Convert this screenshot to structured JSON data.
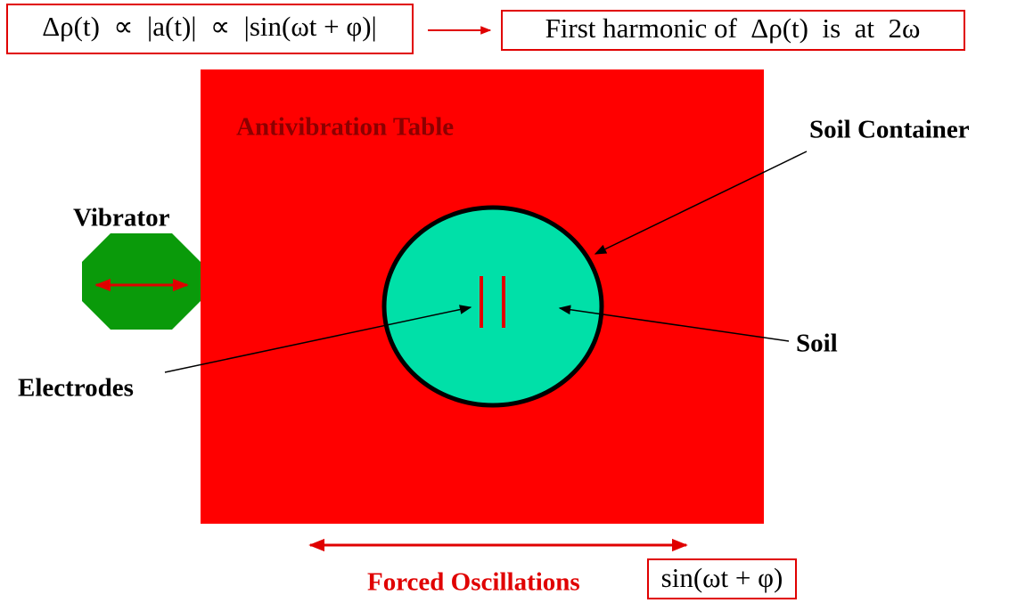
{
  "header": {
    "formula": "Δρ(t)  ∝  |a(t)|  ∝  |sin(ωt + φ)|",
    "result": "First harmonic of  Δρ(t)  is  at  2ω"
  },
  "labels": {
    "table": "Antivibration Table",
    "container": "Soil Container",
    "vibrator": "Vibrator",
    "soil": "Soil",
    "electrodes": "Electrodes"
  },
  "footer": {
    "caption": "Forced Oscillations",
    "formula": "sin(ωt + φ)"
  }
}
